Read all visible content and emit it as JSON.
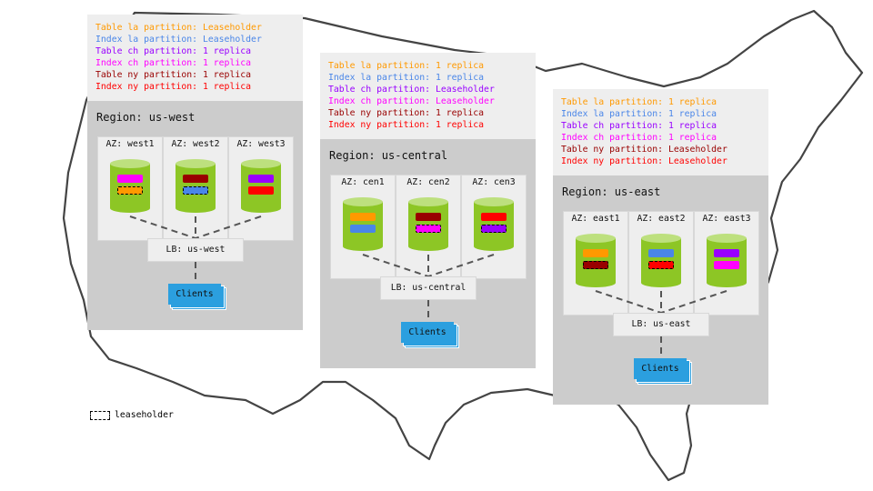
{
  "colors": {
    "orange": "#ff9900",
    "blue": "#4a86e8",
    "purple": "#9900ff",
    "magenta": "#ff00ff",
    "darkred": "#990000",
    "red": "#ff0000",
    "cylinder": "#8dc625",
    "clients": "#2b9fdf"
  },
  "regions": [
    {
      "id": "us-west",
      "legend": [
        {
          "text": "Table la partition: Leaseholder",
          "color": "#ff9900"
        },
        {
          "text": "Index la partition: Leaseholder",
          "color": "#4a86e8"
        },
        {
          "text": "Table ch partition: 1 replica",
          "color": "#9900ff"
        },
        {
          "text": "Index ch partition: 1 replica",
          "color": "#ff00ff"
        },
        {
          "text": "Table ny partition: 1 replica",
          "color": "#990000"
        },
        {
          "text": "Index ny partition: 1 replica",
          "color": "#ff0000"
        }
      ],
      "title": "Region: us-west",
      "azs": [
        {
          "label": "AZ: west1",
          "replicas": [
            {
              "color": "#ff00ff",
              "leaseholder": false
            },
            {
              "color": "#ff9900",
              "leaseholder": true
            }
          ]
        },
        {
          "label": "AZ: west2",
          "replicas": [
            {
              "color": "#990000",
              "leaseholder": false
            },
            {
              "color": "#4a86e8",
              "leaseholder": true
            }
          ]
        },
        {
          "label": "AZ: west3",
          "replicas": [
            {
              "color": "#9900ff",
              "leaseholder": false
            },
            {
              "color": "#ff0000",
              "leaseholder": false
            }
          ]
        }
      ],
      "lb": "LB: us-west",
      "clients": "Clients"
    },
    {
      "id": "us-central",
      "legend": [
        {
          "text": "Table la partition: 1 replica",
          "color": "#ff9900"
        },
        {
          "text": "Index la partition: 1 replica",
          "color": "#4a86e8"
        },
        {
          "text": "Table ch partition: Leaseholder",
          "color": "#9900ff"
        },
        {
          "text": "Index ch partition: Leaseholder",
          "color": "#ff00ff"
        },
        {
          "text": "Table ny partition: 1 replica",
          "color": "#990000"
        },
        {
          "text": "Index ny partition: 1 replica",
          "color": "#ff0000"
        }
      ],
      "title": "Region: us-central",
      "azs": [
        {
          "label": "AZ: cen1",
          "replicas": [
            {
              "color": "#ff9900",
              "leaseholder": false
            },
            {
              "color": "#4a86e8",
              "leaseholder": false
            }
          ]
        },
        {
          "label": "AZ: cen2",
          "replicas": [
            {
              "color": "#990000",
              "leaseholder": false
            },
            {
              "color": "#ff00ff",
              "leaseholder": true
            }
          ]
        },
        {
          "label": "AZ: cen3",
          "replicas": [
            {
              "color": "#ff0000",
              "leaseholder": false
            },
            {
              "color": "#9900ff",
              "leaseholder": true
            }
          ]
        }
      ],
      "lb": "LB: us-central",
      "clients": "Clients"
    },
    {
      "id": "us-east",
      "legend": [
        {
          "text": "Table la partition: 1 replica",
          "color": "#ff9900"
        },
        {
          "text": "Index la partition: 1 replica",
          "color": "#4a86e8"
        },
        {
          "text": "Table ch partition: 1 replica",
          "color": "#9900ff"
        },
        {
          "text": "Index ch partition: 1 replica",
          "color": "#ff00ff"
        },
        {
          "text": "Table ny partition: Leaseholder",
          "color": "#990000"
        },
        {
          "text": "Index ny partition: Leaseholder",
          "color": "#ff0000"
        }
      ],
      "title": "Region: us-east",
      "azs": [
        {
          "label": "AZ: east1",
          "replicas": [
            {
              "color": "#ff9900",
              "leaseholder": false
            },
            {
              "color": "#990000",
              "leaseholder": true
            }
          ]
        },
        {
          "label": "AZ: east2",
          "replicas": [
            {
              "color": "#4a86e8",
              "leaseholder": false
            },
            {
              "color": "#ff0000",
              "leaseholder": true
            }
          ]
        },
        {
          "label": "AZ: east3",
          "replicas": [
            {
              "color": "#9900ff",
              "leaseholder": false
            },
            {
              "color": "#ff00ff",
              "leaseholder": false
            }
          ]
        }
      ],
      "lb": "LB: us-east",
      "clients": "Clients"
    }
  ],
  "key": {
    "label": "leaseholder"
  }
}
